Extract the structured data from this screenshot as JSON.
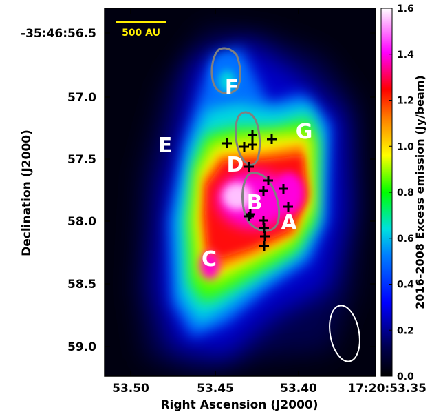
{
  "chart_data": {
    "type": "heatmap",
    "title": "",
    "xlabel": "Right Ascension (J2000)",
    "ylabel": "Declination (J2000)",
    "x_ticks": [
      "53.50",
      "53.45",
      "53.40",
      "17:20:53.35"
    ],
    "y_ticks": [
      "-35:46:56.5",
      "57.0",
      "57.5",
      "58.0",
      "58.5",
      "59.0"
    ],
    "colorbar": {
      "label": "2016-2008 Excess emission (Jy/beam)",
      "range": [
        0.0,
        1.6
      ],
      "ticks": [
        "0.0",
        "0.2",
        "0.4",
        "0.6",
        "0.8",
        "1.0",
        "1.2",
        "1.4",
        "1.6"
      ]
    },
    "scale_bar": "500 AU",
    "source_labels": [
      "A",
      "B",
      "C",
      "D",
      "E",
      "F",
      "G"
    ],
    "beam": "ellipse (bottom-right)"
  }
}
